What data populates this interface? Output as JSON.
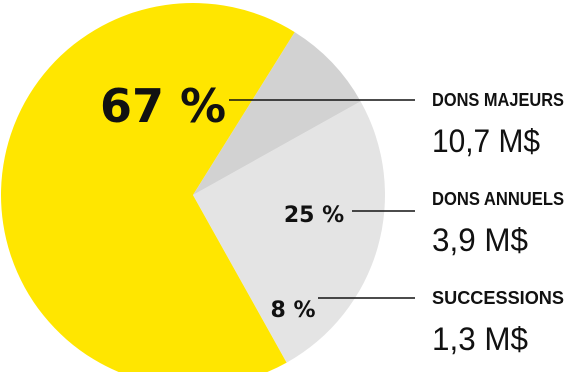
{
  "chart_data": {
    "type": "pie",
    "categories": [
      "DONS MAJEURS",
      "DONS ANNUELS",
      "SUCCESSIONS"
    ],
    "values": [
      67,
      25,
      8
    ],
    "percent_labels": [
      "67 %",
      "25 %",
      "8 %"
    ],
    "amounts": [
      "10,7 M$",
      "3,9 M$",
      "1,3 M$"
    ],
    "colors": [
      "#FFE600",
      "#E4E4E4",
      "#D2D2D2"
    ],
    "start_angle_deg": 58,
    "direction": "counterclockwise",
    "legend": "right"
  }
}
